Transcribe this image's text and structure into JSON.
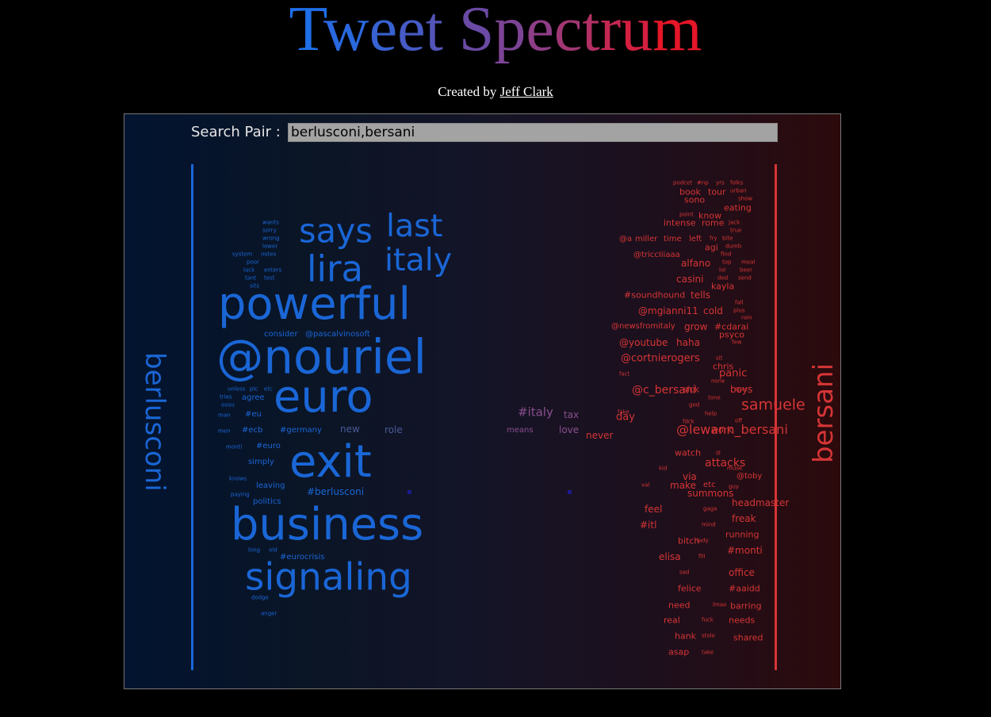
{
  "header": {
    "title_letters": [
      {
        "ch": "T",
        "color": "#1e6fe8"
      },
      {
        "ch": "w",
        "color": "#2a68de"
      },
      {
        "ch": "e",
        "color": "#3862d2"
      },
      {
        "ch": "e",
        "color": "#465bc6"
      },
      {
        "ch": "t",
        "color": "#5455b8"
      },
      {
        "ch": " ",
        "color": "#000000"
      },
      {
        "ch": "S",
        "color": "#6a4aa4"
      },
      {
        "ch": "p",
        "color": "#7c4494"
      },
      {
        "ch": "e",
        "color": "#8e3e86"
      },
      {
        "ch": "c",
        "color": "#a03774"
      },
      {
        "ch": "t",
        "color": "#b23064"
      },
      {
        "ch": "r",
        "color": "#c42852"
      },
      {
        "ch": "u",
        "color": "#d41f40"
      },
      {
        "ch": "m",
        "color": "#e41628"
      }
    ],
    "created_by": "Created by",
    "author": "Jeff Clark"
  },
  "search": {
    "label": "Search Pair :",
    "value": "berlusconi,bersani"
  },
  "left_term": "berlusconi",
  "right_term": "bersani",
  "colors": {
    "left": "#1a66d6",
    "right": "#d63535",
    "mid": "#8a4f8e"
  },
  "words": [
    {
      "t": "wants",
      "s": 7,
      "c": "b"
    },
    {
      "t": "sorry",
      "s": 7,
      "c": "b"
    },
    {
      "t": "wrong",
      "s": 7,
      "c": "b"
    },
    {
      "t": "lower",
      "s": 7,
      "c": "b"
    },
    {
      "t": "system",
      "s": 7,
      "c": "b"
    },
    {
      "t": "notes",
      "s": 7,
      "c": "b"
    },
    {
      "t": "poor",
      "s": 7,
      "c": "b"
    },
    {
      "t": "lack",
      "s": 7,
      "c": "b"
    },
    {
      "t": "enters",
      "s": 7,
      "c": "b"
    },
    {
      "t": "tant",
      "s": 7,
      "c": "b"
    },
    {
      "t": "test",
      "s": 7,
      "c": "b"
    },
    {
      "t": "sits",
      "s": 7,
      "c": "b"
    },
    {
      "t": "says",
      "s": 46,
      "c": "b"
    },
    {
      "t": "last",
      "s": 44,
      "c": "b"
    },
    {
      "t": "lira",
      "s": 50,
      "c": "b"
    },
    {
      "t": "italy",
      "s": 44,
      "c": "b"
    },
    {
      "t": "powerful",
      "s": 62,
      "c": "b"
    },
    {
      "t": "consider",
      "s": 10,
      "c": "b"
    },
    {
      "t": "@pascalvinosoft",
      "s": 10,
      "c": "b"
    },
    {
      "t": "@nouriel",
      "s": 66,
      "c": "b"
    },
    {
      "t": "unless",
      "s": 7,
      "c": "b"
    },
    {
      "t": "plc",
      "s": 7,
      "c": "b"
    },
    {
      "t": "etc",
      "s": 7,
      "c": "b"
    },
    {
      "t": "tries",
      "s": 7,
      "c": "b"
    },
    {
      "t": "agree",
      "s": 10,
      "c": "b"
    },
    {
      "t": "ousu",
      "s": 7,
      "c": "b"
    },
    {
      "t": "euro",
      "s": 62,
      "c": "b"
    },
    {
      "t": "man",
      "s": 7,
      "c": "b"
    },
    {
      "t": "#eu",
      "s": 10,
      "c": "b"
    },
    {
      "t": "men",
      "s": 7,
      "c": "b"
    },
    {
      "t": "#ecb",
      "s": 10,
      "c": "b"
    },
    {
      "t": "#germany",
      "s": 10,
      "c": "b"
    },
    {
      "t": "new",
      "s": 12,
      "c": "bm"
    },
    {
      "t": "role",
      "s": 12,
      "c": "bm"
    },
    {
      "t": "monti",
      "s": 7,
      "c": "b"
    },
    {
      "t": "#euro",
      "s": 10,
      "c": "b"
    },
    {
      "t": "exit",
      "s": 62,
      "c": "b"
    },
    {
      "t": "simply",
      "s": 10,
      "c": "b"
    },
    {
      "t": "knows",
      "s": 7,
      "c": "b"
    },
    {
      "t": "leaving",
      "s": 10,
      "c": "b"
    },
    {
      "t": "paying",
      "s": 7,
      "c": "b"
    },
    {
      "t": "#berlusconi",
      "s": 12,
      "c": "b"
    },
    {
      "t": "politics",
      "s": 10,
      "c": "b"
    },
    {
      "t": "business",
      "s": 62,
      "c": "b"
    },
    {
      "t": "long",
      "s": 7,
      "c": "b"
    },
    {
      "t": "old",
      "s": 7,
      "c": "b"
    },
    {
      "t": "#eurocrisis",
      "s": 10,
      "c": "b"
    },
    {
      "t": "signaling",
      "s": 52,
      "c": "b"
    },
    {
      "t": "dodge",
      "s": 7,
      "c": "b"
    },
    {
      "t": "anger",
      "s": 7,
      "c": "b"
    },
    {
      "t": "#italy",
      "s": 15,
      "c": "m"
    },
    {
      "t": "tax",
      "s": 12,
      "c": "m"
    },
    {
      "t": "means",
      "s": 10,
      "c": "m"
    },
    {
      "t": "love",
      "s": 12,
      "c": "m"
    },
    {
      "t": "podcet",
      "s": 7,
      "c": "r"
    },
    {
      "t": "#np",
      "s": 7,
      "c": "r"
    },
    {
      "t": "yrs",
      "s": 7,
      "c": "r"
    },
    {
      "t": "folks",
      "s": 7,
      "c": "r"
    },
    {
      "t": "book",
      "s": 11,
      "c": "r"
    },
    {
      "t": "tour",
      "s": 11,
      "c": "r"
    },
    {
      "t": "urban",
      "s": 7,
      "c": "r"
    },
    {
      "t": "sono",
      "s": 11,
      "c": "r"
    },
    {
      "t": "show",
      "s": 7,
      "c": "r"
    },
    {
      "t": "eating",
      "s": 11,
      "c": "r"
    },
    {
      "t": "point",
      "s": 7,
      "c": "r"
    },
    {
      "t": "know",
      "s": 11,
      "c": "r"
    },
    {
      "t": "intense",
      "s": 11,
      "c": "r"
    },
    {
      "t": "rome",
      "s": 11,
      "c": "r"
    },
    {
      "t": "jack",
      "s": 7,
      "c": "r"
    },
    {
      "t": "true",
      "s": 7,
      "c": "r"
    },
    {
      "t": "@a",
      "s": 10,
      "c": "r"
    },
    {
      "t": "miller",
      "s": 10,
      "c": "r"
    },
    {
      "t": "time",
      "s": 10,
      "c": "r"
    },
    {
      "t": "left",
      "s": 10,
      "c": "r"
    },
    {
      "t": "fry",
      "s": 7,
      "c": "r"
    },
    {
      "t": "bite",
      "s": 7,
      "c": "r"
    },
    {
      "t": "agi",
      "s": 11,
      "c": "r"
    },
    {
      "t": "dumb",
      "s": 7,
      "c": "r"
    },
    {
      "t": "@triccIiiaaa",
      "s": 10,
      "c": "r"
    },
    {
      "t": "find",
      "s": 7,
      "c": "r"
    },
    {
      "t": "alfano",
      "s": 12,
      "c": "r"
    },
    {
      "t": "top",
      "s": 7,
      "c": "r"
    },
    {
      "t": "meal",
      "s": 7,
      "c": "r"
    },
    {
      "t": "lol",
      "s": 7,
      "c": "r"
    },
    {
      "t": "beer",
      "s": 7,
      "c": "r"
    },
    {
      "t": "casini",
      "s": 12,
      "c": "r"
    },
    {
      "t": "ded",
      "s": 7,
      "c": "r"
    },
    {
      "t": "send",
      "s": 7,
      "c": "r"
    },
    {
      "t": "kayla",
      "s": 11,
      "c": "r"
    },
    {
      "t": "#soundhound",
      "s": 11,
      "c": "r"
    },
    {
      "t": "tells",
      "s": 12,
      "c": "r"
    },
    {
      "t": "fall",
      "s": 7,
      "c": "r"
    },
    {
      "t": "plus",
      "s": 7,
      "c": "r"
    },
    {
      "t": "@mgianni11",
      "s": 12,
      "c": "r"
    },
    {
      "t": "cold",
      "s": 12,
      "c": "r"
    },
    {
      "t": "rain",
      "s": 7,
      "c": "r"
    },
    {
      "t": "@newsfromitaly",
      "s": 10,
      "c": "r"
    },
    {
      "t": "grow",
      "s": 12,
      "c": "r"
    },
    {
      "t": "#cdarai",
      "s": 11,
      "c": "r"
    },
    {
      "t": "psyco",
      "s": 11,
      "c": "r"
    },
    {
      "t": "@youtube",
      "s": 12,
      "c": "r"
    },
    {
      "t": "haha",
      "s": 12,
      "c": "r"
    },
    {
      "t": "few",
      "s": 7,
      "c": "r"
    },
    {
      "t": "@cortnierogers",
      "s": 13,
      "c": "r"
    },
    {
      "t": "sit",
      "s": 7,
      "c": "r"
    },
    {
      "t": "chris",
      "s": 11,
      "c": "r"
    },
    {
      "t": "fact",
      "s": 7,
      "c": "r"
    },
    {
      "t": "panic",
      "s": 13,
      "c": "r"
    },
    {
      "t": "none",
      "s": 7,
      "c": "r"
    },
    {
      "t": "sick",
      "s": 11,
      "c": "r"
    },
    {
      "t": "spac",
      "s": 7,
      "c": "r"
    },
    {
      "t": "@c_bersani",
      "s": 14,
      "c": "r"
    },
    {
      "t": "tone",
      "s": 7,
      "c": "r"
    },
    {
      "t": "boys",
      "s": 12,
      "c": "r"
    },
    {
      "t": "fake",
      "s": 7,
      "c": "r"
    },
    {
      "t": "help",
      "s": 7,
      "c": "r"
    },
    {
      "t": "samuele",
      "s": 19,
      "c": "r"
    },
    {
      "t": "god",
      "s": 7,
      "c": "r"
    },
    {
      "t": "day",
      "s": 13,
      "c": "r"
    },
    {
      "t": "fdck",
      "s": 7,
      "c": "r"
    },
    {
      "t": "off",
      "s": 7,
      "c": "r"
    },
    {
      "t": "work",
      "s": 11,
      "c": "r"
    },
    {
      "t": "@lewann_bersani",
      "s": 16,
      "c": "r"
    },
    {
      "t": "never",
      "s": 12,
      "c": "r"
    },
    {
      "t": "watch",
      "s": 11,
      "c": "r"
    },
    {
      "t": "ill",
      "s": 7,
      "c": "r"
    },
    {
      "t": "attacks",
      "s": 14,
      "c": "r"
    },
    {
      "t": "kid",
      "s": 7,
      "c": "r"
    },
    {
      "t": "muse",
      "s": 7,
      "c": "r"
    },
    {
      "t": "via",
      "s": 12,
      "c": "r"
    },
    {
      "t": "@toby",
      "s": 10,
      "c": "r"
    },
    {
      "t": "etc",
      "s": 10,
      "c": "r"
    },
    {
      "t": "val",
      "s": 7,
      "c": "r"
    },
    {
      "t": "make",
      "s": 12,
      "c": "r"
    },
    {
      "t": "guy",
      "s": 7,
      "c": "r"
    },
    {
      "t": "summons",
      "s": 12,
      "c": "r"
    },
    {
      "t": "feel",
      "s": 12,
      "c": "r"
    },
    {
      "t": "gaga",
      "s": 7,
      "c": "r"
    },
    {
      "t": "headmaster",
      "s": 12,
      "c": "r"
    },
    {
      "t": "#itl",
      "s": 12,
      "c": "r"
    },
    {
      "t": "mind",
      "s": 7,
      "c": "r"
    },
    {
      "t": "freak",
      "s": 12,
      "c": "r"
    },
    {
      "t": "bitch",
      "s": 11,
      "c": "r"
    },
    {
      "t": "lady",
      "s": 7,
      "c": "r"
    },
    {
      "t": "running",
      "s": 11,
      "c": "r"
    },
    {
      "t": "elisa",
      "s": 12,
      "c": "r"
    },
    {
      "t": "fill",
      "s": 7,
      "c": "r"
    },
    {
      "t": "#monti",
      "s": 12,
      "c": "r"
    },
    {
      "t": "sad",
      "s": 7,
      "c": "r"
    },
    {
      "t": "office",
      "s": 12,
      "c": "r"
    },
    {
      "t": "felice",
      "s": 11,
      "c": "r"
    },
    {
      "t": "#aaidd",
      "s": 11,
      "c": "r"
    },
    {
      "t": "need",
      "s": 11,
      "c": "r"
    },
    {
      "t": "lmao",
      "s": 7,
      "c": "r"
    },
    {
      "t": "barring",
      "s": 11,
      "c": "r"
    },
    {
      "t": "real",
      "s": 11,
      "c": "r"
    },
    {
      "t": "fuck",
      "s": 7,
      "c": "r"
    },
    {
      "t": "needs",
      "s": 11,
      "c": "r"
    },
    {
      "t": "hank",
      "s": 11,
      "c": "r"
    },
    {
      "t": "stole",
      "s": 7,
      "c": "r"
    },
    {
      "t": "shared",
      "s": 11,
      "c": "r"
    },
    {
      "t": "asap",
      "s": 11,
      "c": "r"
    },
    {
      "t": "take",
      "s": 7,
      "c": "r"
    }
  ]
}
